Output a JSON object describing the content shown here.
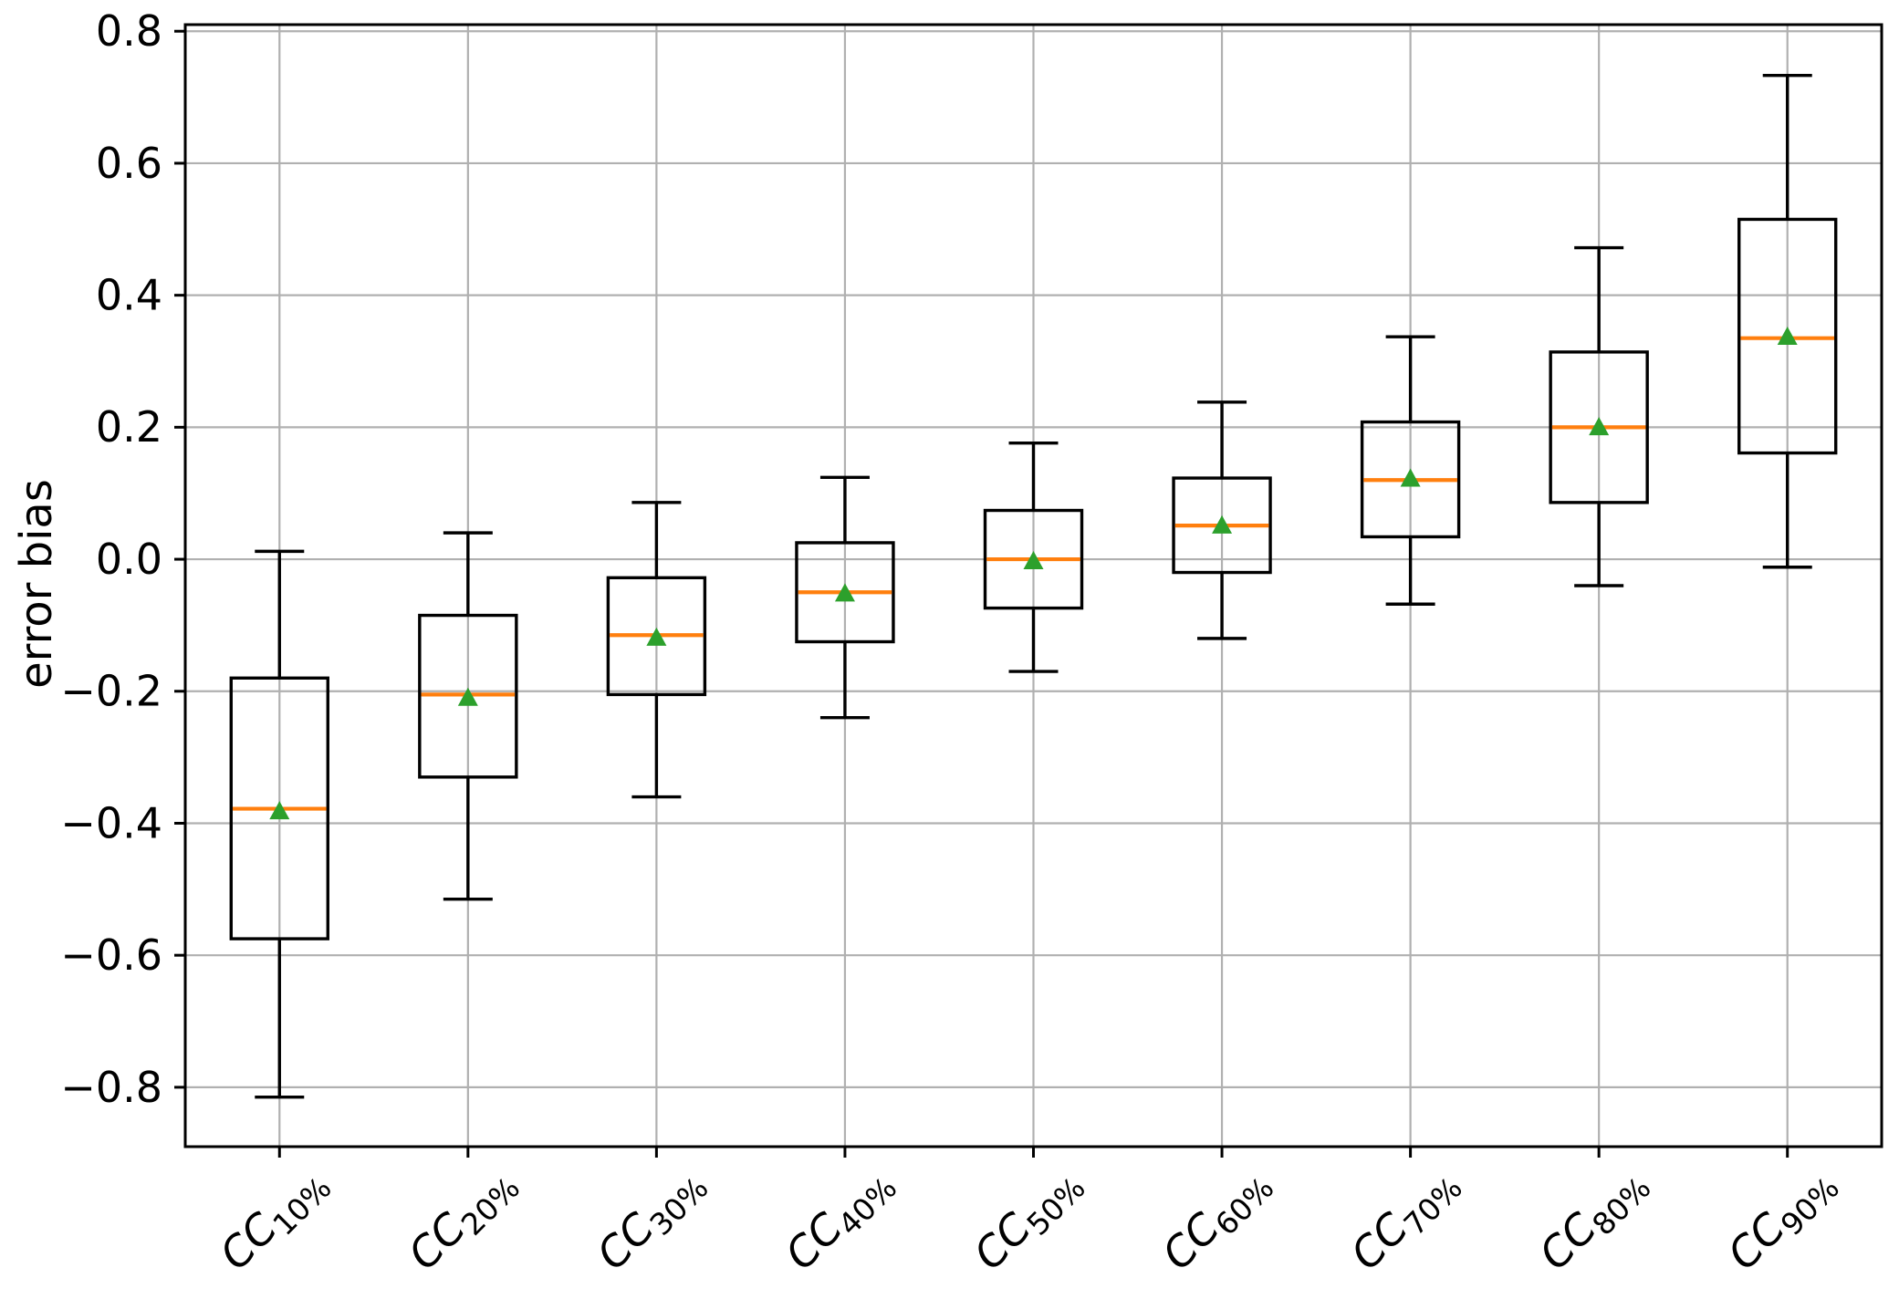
{
  "figure": {
    "background": "#ffffff"
  },
  "chart_data": {
    "type": "box",
    "title": "",
    "xlabel": "",
    "ylabel": "error bias",
    "ylim": [
      -0.89,
      0.81
    ],
    "yticks": [
      0.8,
      0.6,
      0.4,
      0.2,
      0.0,
      -0.2,
      -0.4,
      -0.6,
      -0.8
    ],
    "ytick_labels": [
      "0.8",
      "0.6",
      "0.4",
      "0.2",
      "0.0",
      "−0.2",
      "−0.4",
      "−0.6",
      "−0.8"
    ],
    "grid": true,
    "legend_position": "none",
    "categories": [
      {
        "base": "CC",
        "sub": "10%"
      },
      {
        "base": "CC",
        "sub": "20%"
      },
      {
        "base": "CC",
        "sub": "30%"
      },
      {
        "base": "CC",
        "sub": "40%"
      },
      {
        "base": "CC",
        "sub": "50%"
      },
      {
        "base": "CC",
        "sub": "60%"
      },
      {
        "base": "CC",
        "sub": "70%"
      },
      {
        "base": "CC",
        "sub": "80%"
      },
      {
        "base": "CC",
        "sub": "90%"
      }
    ],
    "series": [
      {
        "label": "CC10%",
        "whisker_low": -0.815,
        "q1": -0.575,
        "median": -0.378,
        "mean": -0.383,
        "q3": -0.18,
        "whisker_high": 0.012
      },
      {
        "label": "CC20%",
        "whisker_low": -0.515,
        "q1": -0.33,
        "median": -0.205,
        "mean": -0.211,
        "q3": -0.085,
        "whisker_high": 0.04
      },
      {
        "label": "CC30%",
        "whisker_low": -0.36,
        "q1": -0.205,
        "median": -0.115,
        "mean": -0.12,
        "q3": -0.028,
        "whisker_high": 0.086
      },
      {
        "label": "CC40%",
        "whisker_low": -0.24,
        "q1": -0.125,
        "median": -0.05,
        "mean": -0.053,
        "q3": 0.025,
        "whisker_high": 0.124
      },
      {
        "label": "CC50%",
        "whisker_low": -0.17,
        "q1": -0.074,
        "median": 0.0,
        "mean": -0.004,
        "q3": 0.074,
        "whisker_high": 0.176
      },
      {
        "label": "CC60%",
        "whisker_low": -0.12,
        "q1": -0.02,
        "median": 0.051,
        "mean": 0.05,
        "q3": 0.123,
        "whisker_high": 0.238
      },
      {
        "label": "CC70%",
        "whisker_low": -0.068,
        "q1": 0.034,
        "median": 0.12,
        "mean": 0.121,
        "q3": 0.208,
        "whisker_high": 0.337
      },
      {
        "label": "CC80%",
        "whisker_low": -0.04,
        "q1": 0.086,
        "median": 0.2,
        "mean": 0.199,
        "q3": 0.314,
        "whisker_high": 0.472
      },
      {
        "label": "CC90%",
        "whisker_low": -0.012,
        "q1": 0.161,
        "median": 0.335,
        "mean": 0.336,
        "q3": 0.515,
        "whisker_high": 0.733
      }
    ],
    "colors": {
      "box_line": "#000000",
      "median": "#ff7f0e",
      "mean_marker": "#2ca02c",
      "grid": "#b0b0b0",
      "spine": "#000000",
      "text": "#000000",
      "background": "#ffffff"
    }
  }
}
